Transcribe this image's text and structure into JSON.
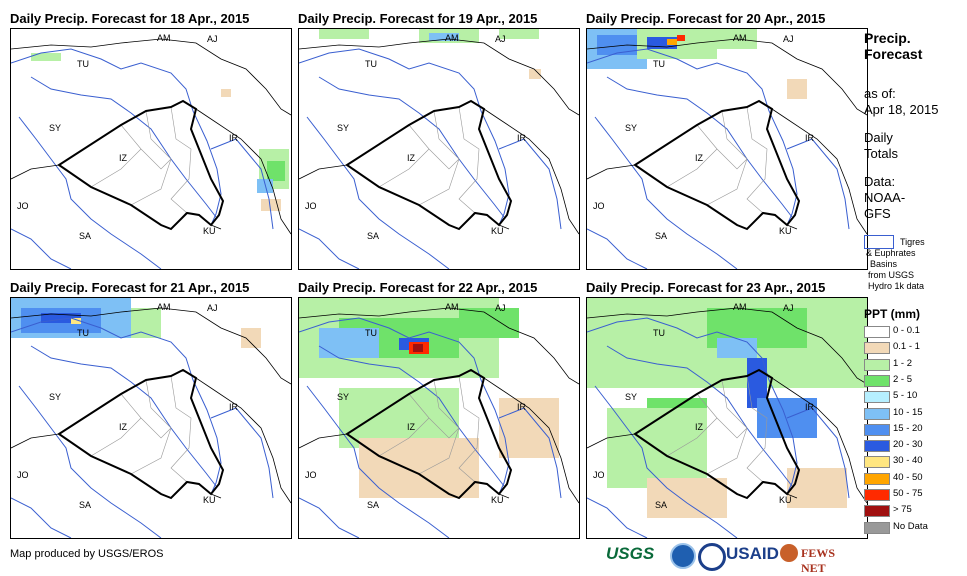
{
  "panels": [
    {
      "title": "Daily Precip. Forecast for 18 Apr., 2015"
    },
    {
      "title": "Daily Precip. Forecast for 19 Apr., 2015"
    },
    {
      "title": "Daily Precip. Forecast for 20 Apr., 2015"
    },
    {
      "title": "Daily Precip. Forecast for 21 Apr., 2015"
    },
    {
      "title": "Daily Precip. Forecast for 22 Apr., 2015"
    },
    {
      "title": "Daily Precip. Forecast for 23 Apr., 2015"
    }
  ],
  "country_labels": [
    "AM",
    "AJ",
    "TU",
    "SY",
    "IZ",
    "IR",
    "JO",
    "SA",
    "KU"
  ],
  "side": {
    "heading_line1": "Precip.",
    "heading_line2": "Forecast",
    "asof_line1": "as of:",
    "asof_line2": "Apr 18, 2015",
    "totals_line1": "Daily",
    "totals_line2": "Totals",
    "data_line1": "Data:",
    "data_line2": "NOAA-",
    "data_line3": "GFS",
    "basins_line1": "Tigres",
    "basins_line2": "& Euphrates",
    "basins_line3": "Basins",
    "basins_line4": "from USGS",
    "basins_line5": "Hydro 1k data"
  },
  "legend": {
    "title": "PPT (mm)",
    "items": [
      {
        "label": "0 - 0.1",
        "color": "#ffffff"
      },
      {
        "label": "0.1 - 1",
        "color": "#f2d9b8"
      },
      {
        "label": "1 - 2",
        "color": "#b7f0a6"
      },
      {
        "label": "2 - 5",
        "color": "#6fe26a"
      },
      {
        "label": "5 - 10",
        "color": "#b6efff"
      },
      {
        "label": "10 - 15",
        "color": "#7ec0f5"
      },
      {
        "label": "15 - 20",
        "color": "#4f8ff0"
      },
      {
        "label": "20 - 30",
        "color": "#2a5ae0"
      },
      {
        "label": "30 - 40",
        "color": "#ffe680"
      },
      {
        "label": "40 - 50",
        "color": "#ffa500"
      },
      {
        "label": "50 - 75",
        "color": "#ff2a00"
      },
      {
        "label": "> 75",
        "color": "#a01010"
      },
      {
        "label": "No Data",
        "color": "#999999"
      }
    ]
  },
  "footer": {
    "credit": "Map produced by USGS/EROS"
  },
  "logos": {
    "usgs": "USGS",
    "usaid": "USAID",
    "fews": "FEWS NET"
  }
}
